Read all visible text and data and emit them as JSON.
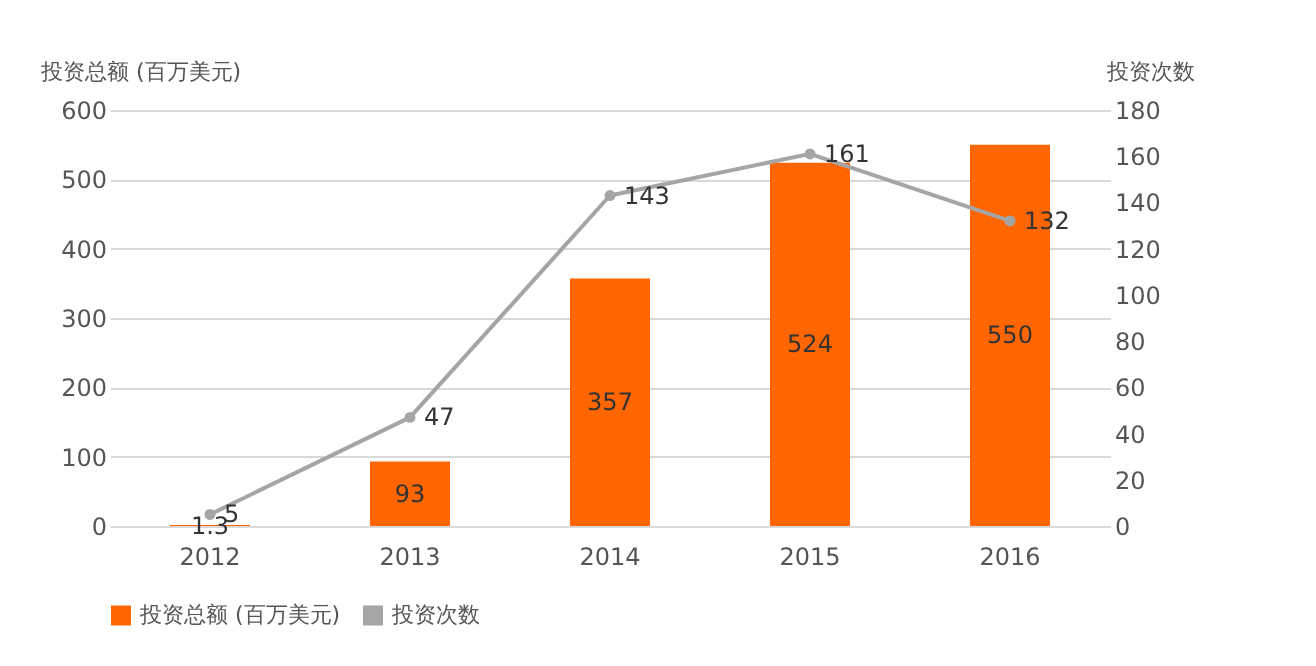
{
  "chart_data": {
    "type": "bar",
    "categories": [
      "2012",
      "2013",
      "2014",
      "2015",
      "2016"
    ],
    "ylabel": "投资总额 (百万美元)",
    "y2label": "投资次数",
    "series": [
      {
        "name": "投资总额 (百万美元)",
        "color": "#ff6600",
        "values": [
          1.3,
          93,
          357,
          524,
          550
        ]
      },
      {
        "name": "投资次数",
        "color": "#a5a5a5",
        "type": "line",
        "axis": "y2",
        "marker": "circle",
        "values": [
          5,
          47,
          143,
          161,
          132
        ]
      }
    ],
    "ylim": [
      0,
      600
    ],
    "yticks": [
      0,
      100,
      200,
      300,
      400,
      500,
      600
    ],
    "y2lim": [
      0,
      180
    ],
    "y2ticks": [
      0,
      20,
      40,
      60,
      80,
      100,
      120,
      140,
      160,
      180
    ],
    "grid": "y",
    "legend": "bottom",
    "data_labels": true
  }
}
